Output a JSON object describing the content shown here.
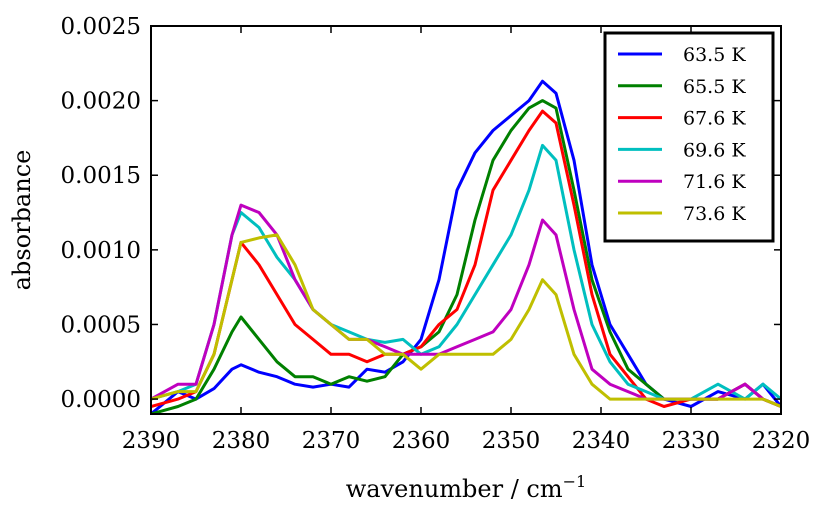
{
  "chart_data": {
    "type": "line",
    "title": "",
    "xlabel": "wavenumber / cm",
    "xlabel_sup": "−1",
    "ylabel": "absorbance",
    "xlim": [
      2390,
      2320
    ],
    "ylim": [
      -0.0001,
      0.0025
    ],
    "x_ticks": [
      2390,
      2380,
      2370,
      2360,
      2350,
      2340,
      2330,
      2320
    ],
    "x_tick_labels": [
      "2390",
      "2380",
      "2370",
      "2360",
      "2350",
      "2340",
      "2330",
      "2320"
    ],
    "y_ticks": [
      0.0,
      0.0005,
      0.001,
      0.0015,
      0.002,
      0.0025
    ],
    "y_tick_labels": [
      "0.0000",
      "0.0005",
      "0.0010",
      "0.0015",
      "0.0020",
      "0.0025"
    ],
    "legend_position": "top-right",
    "series": [
      {
        "name": "63.5 K",
        "color": "#0000ff",
        "x": [
          2390,
          2387,
          2385,
          2383,
          2381,
          2380,
          2378,
          2376,
          2374,
          2372,
          2370,
          2368,
          2366,
          2364,
          2362,
          2360,
          2358,
          2356,
          2354,
          2352,
          2350,
          2348,
          2346.5,
          2345,
          2343,
          2341,
          2339,
          2337,
          2335,
          2333,
          2330,
          2327,
          2324,
          2322,
          2320
        ],
        "y": [
          -0.0001,
          5e-05,
          0.0,
          7e-05,
          0.0002,
          0.00023,
          0.00018,
          0.00015,
          0.0001,
          8e-05,
          0.0001,
          8e-05,
          0.0002,
          0.00018,
          0.00025,
          0.0004,
          0.0008,
          0.0014,
          0.00165,
          0.0018,
          0.0019,
          0.002,
          0.00213,
          0.00205,
          0.0016,
          0.0009,
          0.0005,
          0.0003,
          0.0001,
          0.0,
          -5e-05,
          5e-05,
          0.0,
          0.0001,
          -5e-05
        ]
      },
      {
        "name": "65.5 K",
        "color": "#008000",
        "x": [
          2390,
          2387,
          2385,
          2383,
          2381,
          2380,
          2378,
          2376,
          2374,
          2372,
          2370,
          2368,
          2366,
          2364,
          2362,
          2360,
          2358,
          2356,
          2354,
          2352,
          2350,
          2348,
          2346.5,
          2345,
          2343,
          2341,
          2339,
          2337,
          2335,
          2333,
          2330,
          2327,
          2324,
          2322,
          2320
        ],
        "y": [
          -0.0001,
          -5e-05,
          0.0,
          0.0002,
          0.00045,
          0.00055,
          0.0004,
          0.00025,
          0.00015,
          0.00015,
          0.0001,
          0.00015,
          0.00012,
          0.00015,
          0.0003,
          0.00035,
          0.00045,
          0.0007,
          0.0012,
          0.0016,
          0.0018,
          0.00195,
          0.002,
          0.00195,
          0.0014,
          0.0008,
          0.00045,
          0.0002,
          0.0001,
          0.0,
          0.0,
          0.0,
          0.0001,
          0.0,
          -5e-05
        ]
      },
      {
        "name": "67.6 K",
        "color": "#ff0000",
        "x": [
          2390,
          2387,
          2385,
          2383,
          2381,
          2380,
          2378,
          2376,
          2374,
          2372,
          2370,
          2368,
          2366,
          2364,
          2362,
          2360,
          2358,
          2356,
          2354,
          2352,
          2350,
          2348,
          2346.5,
          2345,
          2343,
          2341,
          2339,
          2337,
          2335,
          2333,
          2330,
          2327,
          2324,
          2322,
          2320
        ],
        "y": [
          -5e-05,
          0.0,
          5e-05,
          0.0003,
          0.0008,
          0.00105,
          0.0009,
          0.0007,
          0.0005,
          0.0004,
          0.0003,
          0.0003,
          0.00025,
          0.0003,
          0.0003,
          0.00035,
          0.0005,
          0.0006,
          0.0009,
          0.0014,
          0.0016,
          0.0018,
          0.00193,
          0.00185,
          0.0013,
          0.0007,
          0.0003,
          0.00015,
          0.0,
          -5e-05,
          0.0,
          0.0,
          0.0001,
          0.0,
          -5e-05
        ]
      },
      {
        "name": "69.6 K",
        "color": "#00bfbf",
        "x": [
          2390,
          2387,
          2385,
          2383,
          2381,
          2380,
          2378,
          2376,
          2374,
          2372,
          2370,
          2368,
          2366,
          2364,
          2362,
          2360,
          2358,
          2356,
          2354,
          2352,
          2350,
          2348,
          2346.5,
          2345,
          2343,
          2341,
          2339,
          2337,
          2335,
          2333,
          2330,
          2327,
          2324,
          2322,
          2320
        ],
        "y": [
          0.0,
          5e-05,
          0.0001,
          0.0005,
          0.0011,
          0.00125,
          0.00115,
          0.00095,
          0.0008,
          0.0006,
          0.0005,
          0.00045,
          0.0004,
          0.00038,
          0.0004,
          0.0003,
          0.00035,
          0.0005,
          0.0007,
          0.0009,
          0.0011,
          0.0014,
          0.0017,
          0.0016,
          0.001,
          0.0005,
          0.00025,
          0.0001,
          5e-05,
          0.0,
          0.0,
          0.0001,
          0.0,
          0.0001,
          0.0
        ]
      },
      {
        "name": "71.6 K",
        "color": "#bf00bf",
        "x": [
          2390,
          2387,
          2385,
          2383,
          2381,
          2380,
          2378,
          2376,
          2374,
          2372,
          2370,
          2368,
          2366,
          2364,
          2362,
          2360,
          2358,
          2356,
          2354,
          2352,
          2350,
          2348,
          2346.5,
          2345,
          2343,
          2341,
          2339,
          2337,
          2335,
          2333,
          2330,
          2327,
          2324,
          2322,
          2320
        ],
        "y": [
          0.0,
          0.0001,
          0.0001,
          0.0005,
          0.0011,
          0.0013,
          0.00125,
          0.0011,
          0.0008,
          0.0006,
          0.0005,
          0.0004,
          0.0004,
          0.00035,
          0.0003,
          0.0003,
          0.0003,
          0.00035,
          0.0004,
          0.00045,
          0.0006,
          0.0009,
          0.0012,
          0.0011,
          0.0006,
          0.0002,
          0.0001,
          5e-05,
          0.0,
          0.0,
          0.0,
          0.0,
          0.0001,
          0.0,
          -5e-05
        ]
      },
      {
        "name": "73.6 K",
        "color": "#bfbf00",
        "x": [
          2390,
          2387,
          2385,
          2383,
          2381,
          2380,
          2378,
          2376,
          2374,
          2372,
          2370,
          2368,
          2366,
          2364,
          2362,
          2360,
          2358,
          2356,
          2354,
          2352,
          2350,
          2348,
          2346.5,
          2345,
          2343,
          2341,
          2339,
          2337,
          2335,
          2333,
          2330,
          2327,
          2324,
          2322,
          2320
        ],
        "y": [
          0.0,
          5e-05,
          5e-05,
          0.0003,
          0.0008,
          0.00105,
          0.00108,
          0.0011,
          0.0009,
          0.0006,
          0.0005,
          0.0004,
          0.0004,
          0.0003,
          0.0003,
          0.0002,
          0.0003,
          0.0003,
          0.0003,
          0.0003,
          0.0004,
          0.0006,
          0.0008,
          0.0007,
          0.0003,
          0.0001,
          0.0,
          0.0,
          0.0,
          0.0,
          0.0,
          0.0,
          0.0,
          0.0,
          -5e-05
        ]
      }
    ]
  }
}
